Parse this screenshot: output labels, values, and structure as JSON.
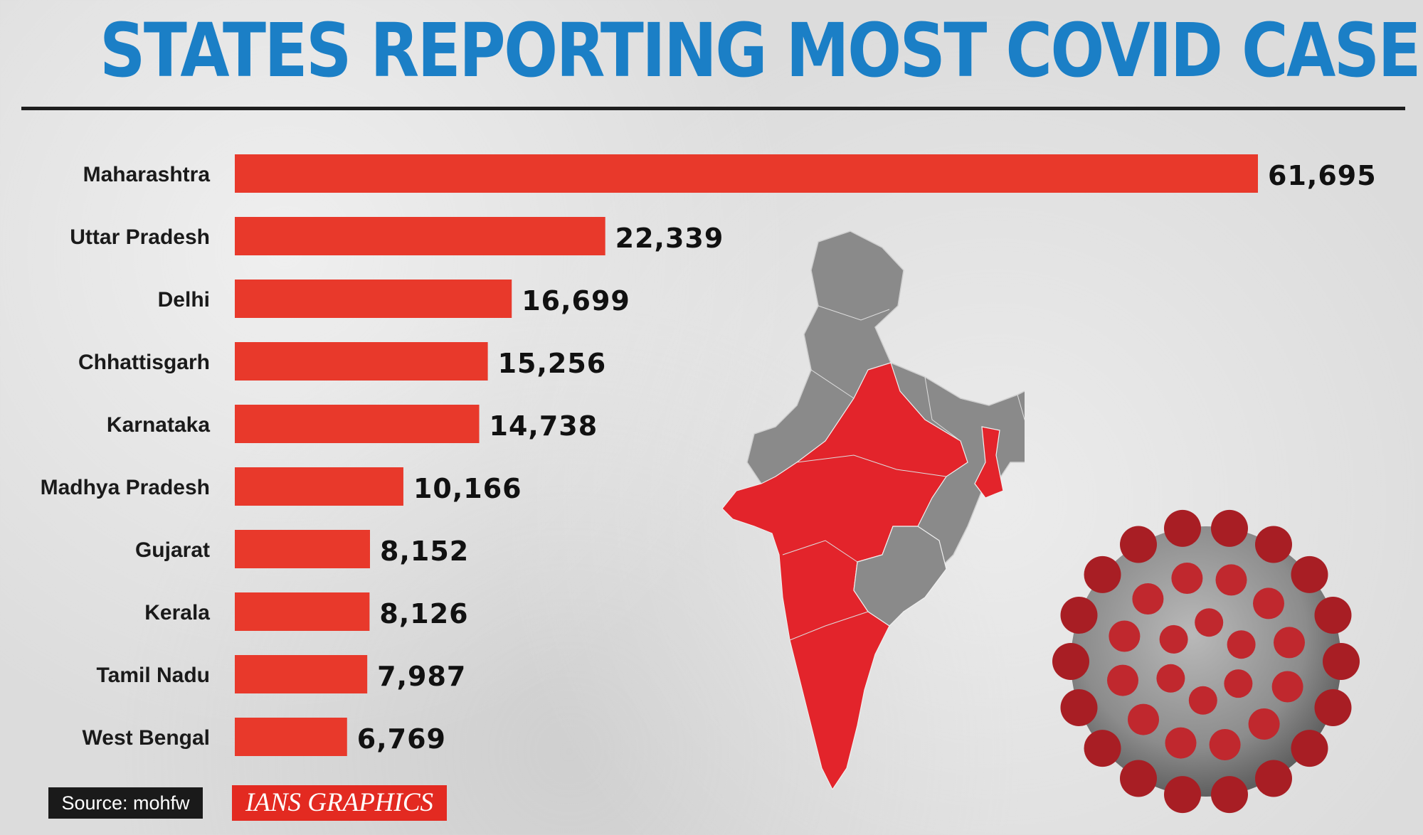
{
  "title": "STATES REPORTING MOST COVID CASES",
  "chart_data": {
    "type": "bar",
    "orientation": "horizontal",
    "categories": [
      "Maharashtra",
      "Uttar Pradesh",
      "Delhi",
      "Chhattisgarh",
      "Karnataka",
      "Madhya Pradesh",
      "Gujarat",
      "Kerala",
      "Tamil Nadu",
      "West Bengal"
    ],
    "values": [
      61695,
      22339,
      16699,
      15256,
      14738,
      10166,
      8152,
      8126,
      7987,
      6769
    ],
    "value_labels": [
      "61,695",
      "22,339",
      "16,699",
      "15,256",
      "14,738",
      "10,166",
      "8,152",
      "8,126",
      "7,987",
      "6,769"
    ],
    "title": "STATES REPORTING MOST COVID CASES",
    "xlabel": "",
    "ylabel": "",
    "xlim": [
      0,
      61695
    ],
    "grid": false,
    "bar_color": "#e8392b"
  },
  "footer": {
    "source": "Source: mohfw",
    "credit": "IANS GRAPHICS"
  },
  "colors": {
    "title": "#1b7fc6",
    "bar": "#e8392b",
    "map_affected": "#e3242b",
    "map_other": "#8a8a8a"
  }
}
